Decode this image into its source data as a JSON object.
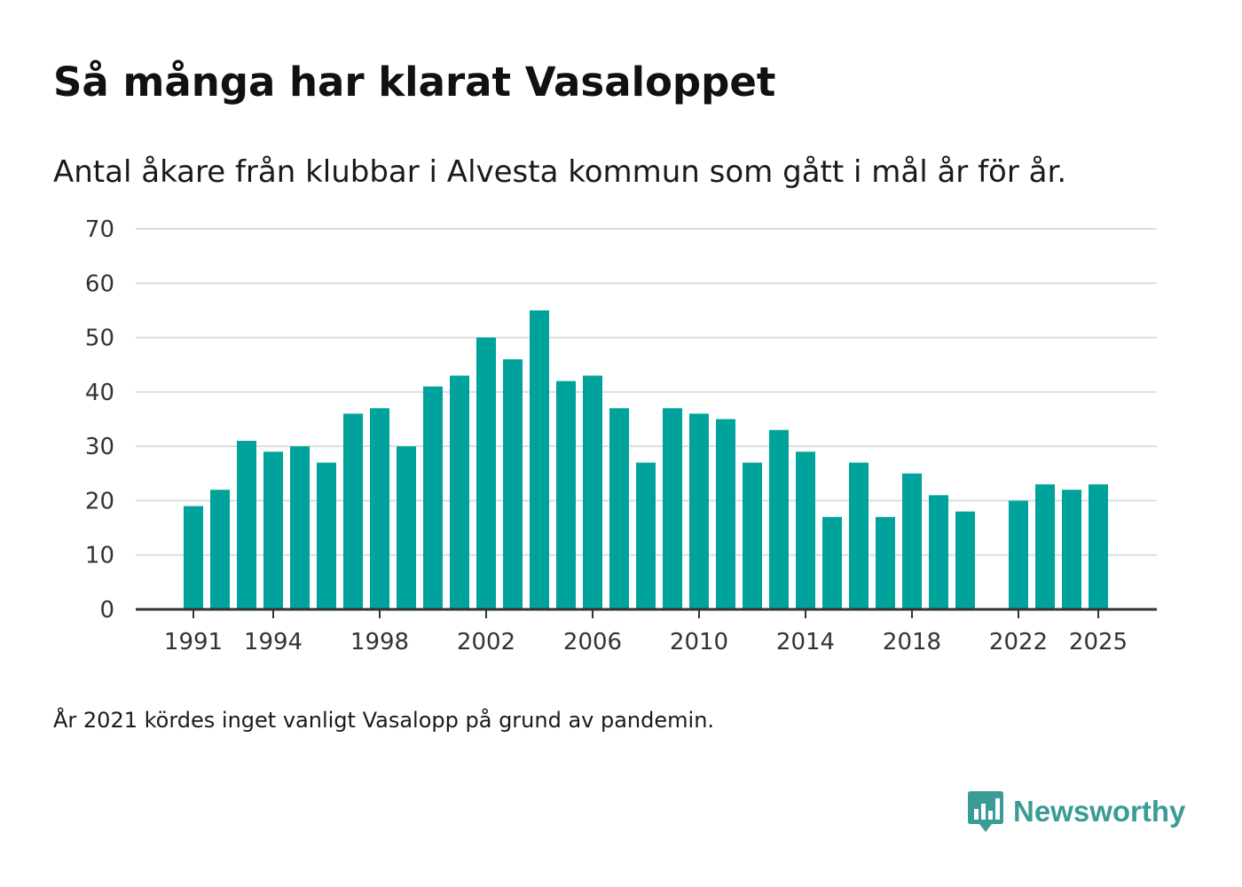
{
  "header": {
    "title": "Så många har klarat Vasaloppet",
    "subtitle": "Antal åkare från klubbar i Alvesta kommun som gått i mål år för år."
  },
  "footnote": "År 2021 kördes inget vanligt Vasalopp på grund av pandemin.",
  "brand": {
    "name": "Newsworthy",
    "icon": "newsworthy-logo-icon",
    "color": "#3a9c97"
  },
  "colors": {
    "bar": "#00a39b",
    "grid": "#dddddd",
    "axis": "#333333"
  },
  "chart_data": {
    "type": "bar",
    "title": "Så många har klarat Vasaloppet",
    "subtitle": "Antal åkare från klubbar i Alvesta kommun som gått i mål år för år.",
    "xlabel": "",
    "ylabel": "",
    "ylim": [
      0,
      70
    ],
    "yticks": [
      0,
      10,
      20,
      30,
      40,
      50,
      60,
      70
    ],
    "xticks": [
      1991,
      1994,
      1998,
      2002,
      2006,
      2010,
      2014,
      2018,
      2022,
      2025
    ],
    "grid": true,
    "categories": [
      1991,
      1992,
      1993,
      1994,
      1995,
      1996,
      1997,
      1998,
      1999,
      2000,
      2001,
      2002,
      2003,
      2004,
      2005,
      2006,
      2007,
      2008,
      2009,
      2010,
      2011,
      2012,
      2013,
      2014,
      2015,
      2016,
      2017,
      2018,
      2019,
      2020,
      2021,
      2022,
      2023,
      2024,
      2025
    ],
    "values": [
      19,
      22,
      31,
      29,
      30,
      27,
      36,
      37,
      30,
      41,
      43,
      50,
      46,
      55,
      42,
      43,
      37,
      27,
      37,
      36,
      35,
      27,
      33,
      29,
      17,
      27,
      17,
      25,
      21,
      18,
      null,
      20,
      23,
      22,
      23
    ]
  }
}
